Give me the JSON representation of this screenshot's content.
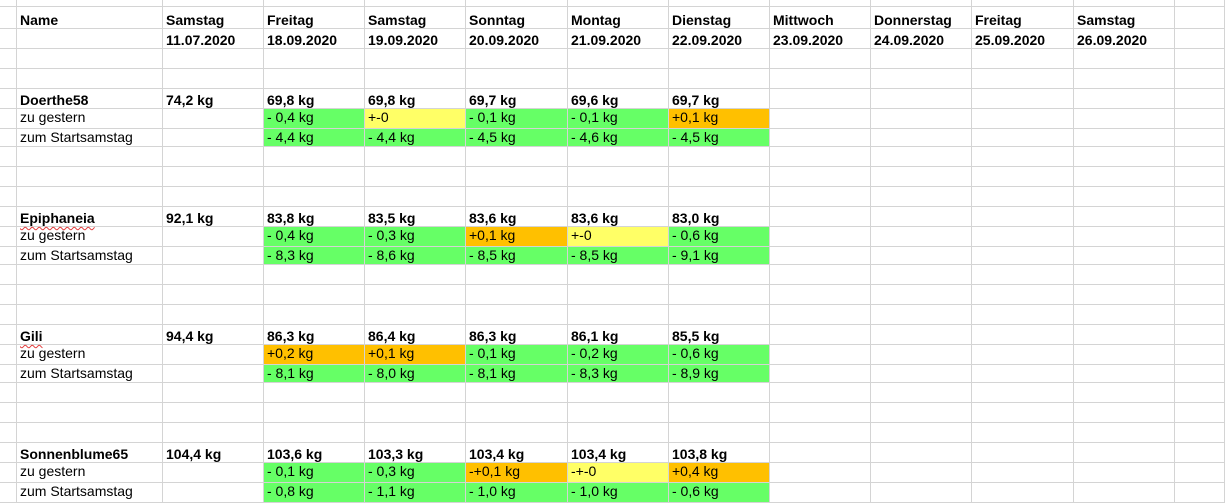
{
  "colors": {
    "green": "#66ff66",
    "yellow": "#ffff66",
    "orange": "#ffc000",
    "grid": "#d4d4d4"
  },
  "header": {
    "name_label": "Name",
    "columns": [
      {
        "day": "Samstag",
        "date": "11.07.2020"
      },
      {
        "day": "Freitag",
        "date": "18.09.2020"
      },
      {
        "day": "Samstag",
        "date": "19.09.2020"
      },
      {
        "day": "Sonntag",
        "date": "20.09.2020"
      },
      {
        "day": "Montag",
        "date": "21.09.2020"
      },
      {
        "day": "Dienstag",
        "date": "22.09.2020"
      },
      {
        "day": "Mittwoch",
        "date": "23.09.2020"
      },
      {
        "day": "Donnerstag",
        "date": "24.09.2020"
      },
      {
        "day": "Freitag",
        "date": "25.09.2020"
      },
      {
        "day": "Samstag",
        "date": "26.09.2020"
      }
    ]
  },
  "people": [
    {
      "name": "Doerthe58",
      "start": "74,2 kg",
      "weights": [
        "69,8 kg",
        "69,8 kg",
        "69,7 kg",
        "69,6 kg",
        "69,7 kg"
      ],
      "to_yesterday_label": "zu gestern",
      "to_yesterday": [
        {
          "text": "- 0,4 kg",
          "color": "green"
        },
        {
          "text": "+-0",
          "color": "yellow"
        },
        {
          "text": "- 0,1 kg",
          "color": "green"
        },
        {
          "text": "- 0,1 kg",
          "color": "green"
        },
        {
          "text": "+0,1 kg",
          "color": "orange"
        }
      ],
      "to_start_label": "zum Startsamstag",
      "to_start": [
        {
          "text": "- 4,4 kg",
          "color": "green"
        },
        {
          "text": "- 4,4 kg",
          "color": "green"
        },
        {
          "text": "- 4,5 kg",
          "color": "green"
        },
        {
          "text": "- 4,6 kg",
          "color": "green"
        },
        {
          "text": "- 4,5 kg",
          "color": "green"
        }
      ]
    },
    {
      "name": "Epiphaneia",
      "start": "92,1 kg",
      "weights": [
        "83,8 kg",
        "83,5 kg",
        "83,6 kg",
        "83,6 kg",
        "83,0 kg"
      ],
      "to_yesterday_label": "zu gestern",
      "to_yesterday": [
        {
          "text": "- 0,4 kg",
          "color": "green"
        },
        {
          "text": "- 0,3 kg",
          "color": "green"
        },
        {
          "text": "+0,1 kg",
          "color": "orange"
        },
        {
          "text": "+-0",
          "color": "yellow"
        },
        {
          "text": "- 0,6 kg",
          "color": "green"
        }
      ],
      "to_start_label": "zum Startsamstag",
      "to_start": [
        {
          "text": "- 8,3 kg",
          "color": "green"
        },
        {
          "text": "- 8,6 kg",
          "color": "green"
        },
        {
          "text": "- 8,5 kg",
          "color": "green"
        },
        {
          "text": "- 8,5 kg",
          "color": "green"
        },
        {
          "text": "- 9,1 kg",
          "color": "green"
        }
      ]
    },
    {
      "name": "Gili",
      "start": "94,4 kg",
      "weights": [
        "86,3 kg",
        "86,4 kg",
        "86,3 kg",
        "86,1 kg",
        "85,5 kg"
      ],
      "to_yesterday_label": "zu gestern",
      "to_yesterday": [
        {
          "text": "+0,2 kg",
          "color": "orange"
        },
        {
          "text": "+0,1 kg",
          "color": "orange"
        },
        {
          "text": "- 0,1 kg",
          "color": "green"
        },
        {
          "text": "- 0,2 kg",
          "color": "green"
        },
        {
          "text": "- 0,6 kg",
          "color": "green"
        }
      ],
      "to_start_label": "zum Startsamstag",
      "to_start": [
        {
          "text": "- 8,1 kg",
          "color": "green"
        },
        {
          "text": "- 8,0 kg",
          "color": "green"
        },
        {
          "text": "- 8,1 kg",
          "color": "green"
        },
        {
          "text": "- 8,3 kg",
          "color": "green"
        },
        {
          "text": "- 8,9 kg",
          "color": "green"
        }
      ]
    },
    {
      "name": "Sonnenblume65",
      "start": "104,4 kg",
      "weights": [
        "103,6 kg",
        "103,3 kg",
        "103,4 kg",
        "103,4 kg",
        "103,8 kg"
      ],
      "to_yesterday_label": "zu gestern",
      "to_yesterday": [
        {
          "text": "- 0,1 kg",
          "color": "green"
        },
        {
          "text": "- 0,3 kg",
          "color": "green"
        },
        {
          "text": "-+0,1 kg",
          "color": "orange"
        },
        {
          "text": "-+-0",
          "color": "yellow"
        },
        {
          "text": "+0,4 kg",
          "color": "orange"
        }
      ],
      "to_start_label": "zum Startsamstag",
      "to_start": [
        {
          "text": "- 0,8 kg",
          "color": "green"
        },
        {
          "text": "- 1,1 kg",
          "color": "green"
        },
        {
          "text": "- 1,0 kg",
          "color": "green"
        },
        {
          "text": "- 1,0 kg",
          "color": "green"
        },
        {
          "text": "- 0,6 kg",
          "color": "green"
        }
      ]
    }
  ]
}
